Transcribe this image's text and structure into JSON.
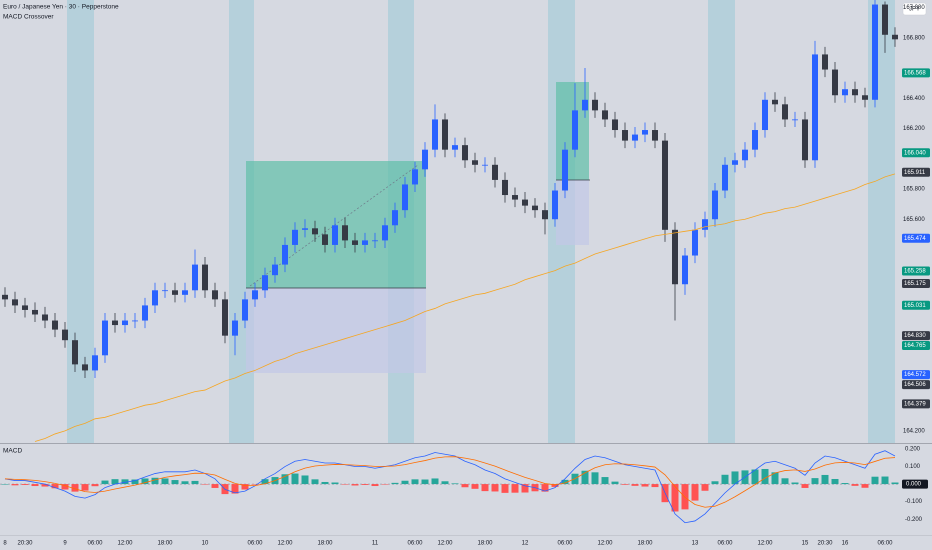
{
  "chart_data": [
    {
      "type": "candlestick",
      "title": "Euro / Japanese Yen · 30 · Pepperstone",
      "subtitle": "MACD Crossover",
      "currency": "JPY",
      "categories": [
        "8",
        null,
        "20:30",
        null,
        null,
        null,
        "9",
        null,
        null,
        "06:00",
        null,
        null,
        "12:00",
        null,
        null,
        null,
        "18:00",
        null,
        null,
        null,
        "10",
        null,
        null,
        null,
        null,
        "06:00",
        null,
        null,
        "12:00",
        null,
        null,
        null,
        "18:00",
        null,
        null,
        null,
        null,
        "11",
        null,
        null,
        null,
        "06:00",
        null,
        null,
        "12:00",
        null,
        null,
        null,
        "18:00",
        null,
        null,
        null,
        "12",
        null,
        null,
        null,
        "06:00",
        null,
        null,
        null,
        "12:00",
        null,
        null,
        null,
        "18:00",
        null,
        null,
        null,
        null,
        "13",
        null,
        null,
        "06:00",
        null,
        null,
        null,
        "12:00",
        null,
        null,
        null,
        "15",
        null,
        "20:30",
        null,
        "16",
        null,
        null,
        null,
        "06:00",
        null
      ],
      "open": [
        165.1,
        165.07,
        165.03,
        165.0,
        164.97,
        164.93,
        164.87,
        164.8,
        164.64,
        164.6,
        164.7,
        164.93,
        164.9,
        164.93,
        164.93,
        165.03,
        165.13,
        165.13,
        165.1,
        165.13,
        165.3,
        165.13,
        165.07,
        164.83,
        164.93,
        165.07,
        165.13,
        165.23,
        165.3,
        165.43,
        165.53,
        165.54,
        165.5,
        165.43,
        165.56,
        165.46,
        165.43,
        165.46,
        165.46,
        165.56,
        165.66,
        165.83,
        165.93,
        166.06,
        166.26,
        166.06,
        166.09,
        165.99,
        165.96,
        165.96,
        165.86,
        165.76,
        165.73,
        165.69,
        165.66,
        165.6,
        165.79,
        166.06,
        166.32,
        166.39,
        166.32,
        166.26,
        166.19,
        166.12,
        166.16,
        166.19,
        166.12,
        165.53,
        165.17,
        165.36,
        165.53,
        165.6,
        165.79,
        165.96,
        165.99,
        166.06,
        166.19,
        166.39,
        166.36,
        166.26,
        166.26,
        165.99,
        166.69,
        166.59,
        166.42,
        166.46,
        166.42,
        166.39,
        167.02,
        166.82
      ],
      "high": [
        165.15,
        165.12,
        165.08,
        165.05,
        165.02,
        164.98,
        164.92,
        164.85,
        164.69,
        164.75,
        164.98,
        164.98,
        164.98,
        164.98,
        165.08,
        165.18,
        165.18,
        165.18,
        165.18,
        165.4,
        165.35,
        165.18,
        165.12,
        164.98,
        165.12,
        165.18,
        165.28,
        165.35,
        165.48,
        165.58,
        165.6,
        165.59,
        165.55,
        165.61,
        165.61,
        165.51,
        165.51,
        165.51,
        165.61,
        165.71,
        165.88,
        165.98,
        166.11,
        166.36,
        166.3,
        166.14,
        166.14,
        166.04,
        166.01,
        166.01,
        165.91,
        165.81,
        165.78,
        165.74,
        165.71,
        165.84,
        166.11,
        166.5,
        166.6,
        166.44,
        166.37,
        166.31,
        166.24,
        166.21,
        166.24,
        166.24,
        166.17,
        165.58,
        165.41,
        165.58,
        165.65,
        165.84,
        166.01,
        166.04,
        166.11,
        166.24,
        166.44,
        166.44,
        166.41,
        166.31,
        166.31,
        166.78,
        166.74,
        166.64,
        166.51,
        166.51,
        166.47,
        167.05,
        167.04,
        166.87
      ],
      "low": [
        165.02,
        164.98,
        164.95,
        164.92,
        164.88,
        164.82,
        164.75,
        164.59,
        164.55,
        164.55,
        164.65,
        164.85,
        164.85,
        164.88,
        164.88,
        164.98,
        165.08,
        165.05,
        165.05,
        165.08,
        165.08,
        165.02,
        164.78,
        164.7,
        164.88,
        165.02,
        165.08,
        165.18,
        165.25,
        165.38,
        165.48,
        165.45,
        165.38,
        165.38,
        165.41,
        165.38,
        165.38,
        165.41,
        165.41,
        165.51,
        165.61,
        165.78,
        165.88,
        166.01,
        166.01,
        166.01,
        165.94,
        165.91,
        165.91,
        165.81,
        165.71,
        165.68,
        165.64,
        165.61,
        165.5,
        165.55,
        165.74,
        166.01,
        166.27,
        166.27,
        166.21,
        166.14,
        166.07,
        166.07,
        166.11,
        166.07,
        165.45,
        164.93,
        165.1,
        165.31,
        165.48,
        165.55,
        165.74,
        165.91,
        165.94,
        166.01,
        166.14,
        166.31,
        166.21,
        166.21,
        165.94,
        165.94,
        166.54,
        166.37,
        166.37,
        166.37,
        166.34,
        166.34,
        166.7,
        166.74
      ],
      "close": [
        165.07,
        165.03,
        165.0,
        164.97,
        164.93,
        164.87,
        164.8,
        164.64,
        164.6,
        164.7,
        164.93,
        164.9,
        164.93,
        164.93,
        165.03,
        165.13,
        165.13,
        165.1,
        165.13,
        165.3,
        165.13,
        165.07,
        164.83,
        164.93,
        165.07,
        165.13,
        165.23,
        165.3,
        165.43,
        165.53,
        165.54,
        165.5,
        165.43,
        165.56,
        165.46,
        165.43,
        165.46,
        165.46,
        165.56,
        165.66,
        165.83,
        165.93,
        166.06,
        166.26,
        166.06,
        166.09,
        165.99,
        165.96,
        165.96,
        165.86,
        165.76,
        165.73,
        165.69,
        165.66,
        165.6,
        165.79,
        166.06,
        166.32,
        166.39,
        166.32,
        166.26,
        166.19,
        166.12,
        166.16,
        166.19,
        166.12,
        165.53,
        165.17,
        165.36,
        165.53,
        165.6,
        165.79,
        165.96,
        165.99,
        166.06,
        166.19,
        166.39,
        166.36,
        166.26,
        166.26,
        165.99,
        166.69,
        166.59,
        166.42,
        166.46,
        166.42,
        166.39,
        167.02,
        166.82,
        166.79
      ],
      "up_color": "#2962ff",
      "down_color": "#363a45",
      "moving_average": {
        "color": "#f5a623",
        "values": [
          null,
          null,
          null,
          164.13,
          164.15,
          164.18,
          164.2,
          164.23,
          164.25,
          164.28,
          164.29,
          164.31,
          164.33,
          164.35,
          164.37,
          164.38,
          164.4,
          164.42,
          164.44,
          164.46,
          164.47,
          164.5,
          164.53,
          164.55,
          164.58,
          164.6,
          164.63,
          164.66,
          164.68,
          164.71,
          164.73,
          164.75,
          164.77,
          164.79,
          164.81,
          164.83,
          164.85,
          164.87,
          164.89,
          164.91,
          164.93,
          164.96,
          164.99,
          165.01,
          165.04,
          165.06,
          165.08,
          165.1,
          165.11,
          165.13,
          165.15,
          165.17,
          165.2,
          165.22,
          165.24,
          165.26,
          165.29,
          165.31,
          165.34,
          165.37,
          165.39,
          165.41,
          165.43,
          165.45,
          165.47,
          165.49,
          165.5,
          165.51,
          165.52,
          165.53,
          165.55,
          165.56,
          165.57,
          165.59,
          165.6,
          165.62,
          165.64,
          165.65,
          165.67,
          165.68,
          165.7,
          165.72,
          165.74,
          165.76,
          165.78,
          165.8,
          165.83,
          165.85,
          165.88,
          165.9
        ]
      },
      "ylim": [
        164.12,
        167.05
      ],
      "yticks": [
        {
          "value": 167,
          "label": "167.000"
        },
        {
          "value": 166.8,
          "label": "166.800"
        },
        {
          "value": 166.4,
          "label": "166.400"
        },
        {
          "value": 166.2,
          "label": "166.200"
        },
        {
          "value": 165.8,
          "label": "165.800"
        },
        {
          "value": 165.6,
          "label": "165.600"
        },
        {
          "value": 164.2,
          "label": "164.200"
        }
      ],
      "price_tags": [
        {
          "value": 166.568,
          "color": "#089981"
        },
        {
          "value": 166.04,
          "label": "166.040",
          "color": "#089981"
        },
        {
          "value": 165.911,
          "color": "#363a45"
        },
        {
          "value": 165.474,
          "color": "#2962ff"
        },
        {
          "value": 165.258,
          "color": "#089981"
        },
        {
          "value": 165.175,
          "color": "#363a45"
        },
        {
          "value": 165.031,
          "color": "#089981"
        },
        {
          "value": 164.83,
          "label": "164.830",
          "color": "#363a45"
        },
        {
          "value": 164.765,
          "color": "#089981"
        },
        {
          "value": 164.572,
          "color": "#2962ff"
        },
        {
          "value": 164.506,
          "color": "#363a45"
        },
        {
          "value": 164.379,
          "color": "#363a45"
        }
      ]
    },
    {
      "type": "macd",
      "title": "MACD",
      "series": [
        {
          "color": "#2962ff",
          "values": [
            0.03,
            0.02,
            0.02,
            0.01,
            0.0,
            -0.02,
            -0.04,
            -0.07,
            -0.08,
            -0.06,
            -0.02,
            0.0,
            0.01,
            0.02,
            0.04,
            0.06,
            0.07,
            0.07,
            0.07,
            0.08,
            0.06,
            0.03,
            -0.03,
            -0.05,
            -0.04,
            -0.01,
            0.03,
            0.06,
            0.1,
            0.13,
            0.14,
            0.13,
            0.12,
            0.12,
            0.11,
            0.1,
            0.1,
            0.09,
            0.1,
            0.11,
            0.13,
            0.15,
            0.16,
            0.18,
            0.17,
            0.16,
            0.13,
            0.11,
            0.08,
            0.06,
            0.03,
            0.01,
            -0.01,
            -0.02,
            -0.04,
            -0.02,
            0.03,
            0.09,
            0.14,
            0.16,
            0.15,
            0.13,
            0.11,
            0.1,
            0.09,
            0.08,
            -0.05,
            -0.17,
            -0.22,
            -0.21,
            -0.17,
            -0.11,
            -0.05,
            0.0,
            0.04,
            0.08,
            0.12,
            0.13,
            0.11,
            0.09,
            0.05,
            0.12,
            0.16,
            0.15,
            0.13,
            0.11,
            0.09,
            0.17,
            0.19,
            0.16
          ]
        },
        {
          "color": "#ff6d00",
          "values": [
            0.03,
            0.027,
            0.025,
            0.021,
            0.014,
            0.004,
            -0.009,
            -0.027,
            -0.043,
            -0.048,
            -0.04,
            -0.028,
            -0.017,
            -0.006,
            0.008,
            0.024,
            0.038,
            0.047,
            0.054,
            0.062,
            0.061,
            0.052,
            0.027,
            0.004,
            -0.009,
            -0.009,
            0.002,
            0.02,
            0.044,
            0.07,
            0.091,
            0.103,
            0.108,
            0.112,
            0.111,
            0.108,
            0.105,
            0.101,
            0.101,
            0.103,
            0.111,
            0.123,
            0.134,
            0.148,
            0.155,
            0.156,
            0.148,
            0.137,
            0.12,
            0.102,
            0.08,
            0.059,
            0.038,
            0.021,
            0.003,
            -0.004,
            0.006,
            0.031,
            0.064,
            0.093,
            0.11,
            0.116,
            0.114,
            0.11,
            0.104,
            0.097,
            0.053,
            -0.014,
            -0.076,
            -0.116,
            -0.132,
            -0.126,
            -0.103,
            -0.072,
            -0.038,
            -0.003,
            0.034,
            0.063,
            0.077,
            0.081,
            0.072,
            0.086,
            0.108,
            0.121,
            0.124,
            0.12,
            0.111,
            0.129,
            0.147,
            0.151
          ]
        }
      ],
      "histogram": {
        "up_color": "#26a69a",
        "down_color": "#ff5252",
        "values": [
          0.0,
          -0.007,
          -0.005,
          -0.011,
          -0.014,
          -0.024,
          -0.031,
          -0.043,
          -0.037,
          -0.012,
          0.02,
          0.028,
          0.027,
          0.026,
          0.032,
          0.036,
          0.032,
          0.023,
          0.016,
          0.018,
          -0.001,
          -0.022,
          -0.057,
          -0.054,
          -0.031,
          -0.001,
          0.028,
          0.04,
          0.056,
          0.06,
          0.049,
          0.027,
          0.012,
          0.009,
          -0.001,
          -0.008,
          -0.005,
          -0.011,
          -0.001,
          0.007,
          0.019,
          0.027,
          0.026,
          0.032,
          0.016,
          0.004,
          -0.018,
          -0.027,
          -0.04,
          -0.042,
          -0.05,
          -0.049,
          -0.048,
          -0.041,
          -0.043,
          -0.016,
          0.024,
          0.059,
          0.076,
          0.067,
          0.04,
          0.014,
          -0.004,
          -0.01,
          -0.014,
          -0.017,
          -0.103,
          -0.156,
          -0.144,
          -0.094,
          -0.038,
          0.016,
          0.053,
          0.072,
          0.078,
          0.083,
          0.086,
          0.067,
          0.033,
          0.009,
          -0.022,
          0.034,
          0.052,
          0.029,
          0.006,
          -0.01,
          -0.021,
          0.042,
          0.043,
          0.009
        ]
      },
      "ylim": [
        -0.29,
        0.234
      ],
      "yticks": [
        {
          "value": 0.2,
          "label": "0.200"
        },
        {
          "value": 0.1,
          "label": "0.100"
        },
        {
          "value": -0.1,
          "label": "-0.100"
        },
        {
          "value": -0.2,
          "label": "-0.200"
        }
      ],
      "zero_tag": {
        "value": 0,
        "label": "0.000"
      }
    }
  ]
}
